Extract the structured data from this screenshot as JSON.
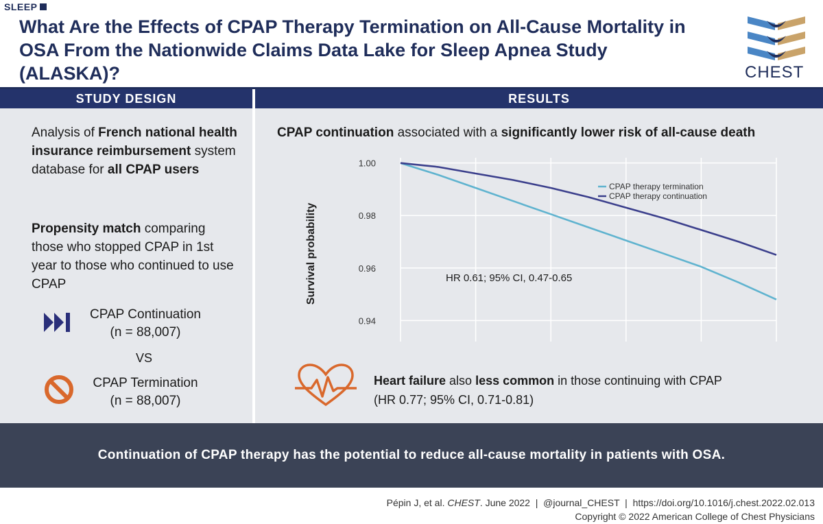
{
  "header": {
    "category": "SLEEP",
    "title": "What Are the Effects of CPAP Therapy Termination on All-Cause Mortality in OSA From the Nationwide Claims Data Lake for Sleep Apnea Study (ALASKA)?",
    "logo_text": "CHEST"
  },
  "study_design": {
    "heading": "STUDY DESIGN",
    "p1": {
      "a": "Analysis of ",
      "b": "French national health insurance reimbursement",
      "c": " system database for ",
      "d": "all CPAP users"
    },
    "p2": {
      "a": "Propensity match",
      "b": " comparing those who stopped CPAP in 1st year to those who continued to use CPAP"
    },
    "group1": {
      "label": "CPAP Continuation",
      "n": "(n = 88,007)",
      "icon": "fast-forward-icon"
    },
    "vs": "VS",
    "group2": {
      "label": "CPAP Termination",
      "n": "(n = 88,007)",
      "icon": "prohibited-icon"
    }
  },
  "results": {
    "heading": "RESULTS",
    "headline": {
      "a": "CPAP continuation",
      "b": " associated with a ",
      "c": "significantly lower risk of all-cause death"
    },
    "heart_failure": {
      "icon": "heart-pulse-icon",
      "a": "Heart failure",
      "b": " also ",
      "c": "less common",
      "d": " in those continuing with CPAP",
      "e": "(HR 0.77; 95% CI, 0.71-0.81)"
    }
  },
  "chart_data": {
    "type": "line",
    "ylabel": "Survival probability",
    "xlabel": "",
    "ylim": [
      0.932,
      1.002
    ],
    "yticks": [
      "0.94",
      "0.96",
      "0.98",
      "1.00"
    ],
    "ytick_values": [
      0.94,
      0.96,
      0.98,
      1.0
    ],
    "x_range": [
      0,
      1
    ],
    "vertical_gridlines": 5,
    "annotation": "HR 0.61; 95% CI, 0.47-0.65",
    "legend_position": "top-right",
    "series": [
      {
        "name": "CPAP therapy termination",
        "color": "#5fb3cf",
        "x": [
          0,
          0.1,
          0.2,
          0.3,
          0.4,
          0.5,
          0.6,
          0.7,
          0.8,
          0.9,
          1.0
        ],
        "y": [
          1.0,
          0.9955,
          0.9905,
          0.9855,
          0.9805,
          0.9755,
          0.9705,
          0.9655,
          0.9605,
          0.9545,
          0.948
        ]
      },
      {
        "name": "CPAP therapy continuation",
        "color": "#3b3f8c",
        "x": [
          0,
          0.1,
          0.2,
          0.3,
          0.4,
          0.5,
          0.6,
          0.7,
          0.8,
          0.9,
          1.0
        ],
        "y": [
          1.0,
          0.9985,
          0.996,
          0.9935,
          0.9905,
          0.987,
          0.983,
          0.979,
          0.9745,
          0.97,
          0.965
        ]
      }
    ]
  },
  "conclusion": "Continuation of CPAP therapy has the potential to reduce all-cause mortality in patients with OSA.",
  "citation": {
    "line1_a": "Pépin J, et al. ",
    "line1_journal": "CHEST",
    "line1_b": ". June 2022  |  @journal_CHEST  |  https://doi.org/10.1016/j.chest.2022.02.013",
    "line2": "Copyright © 2022 American College of Chest Physicians"
  },
  "colors": {
    "navy": "#1f2d5a",
    "header_band": "#24336b",
    "panel_bg": "#e6e8ec",
    "bottom_band": "#3b4356",
    "icon_orange": "#d9682c",
    "logo_blue": "#4a86c5",
    "logo_gold": "#c9a36a"
  }
}
